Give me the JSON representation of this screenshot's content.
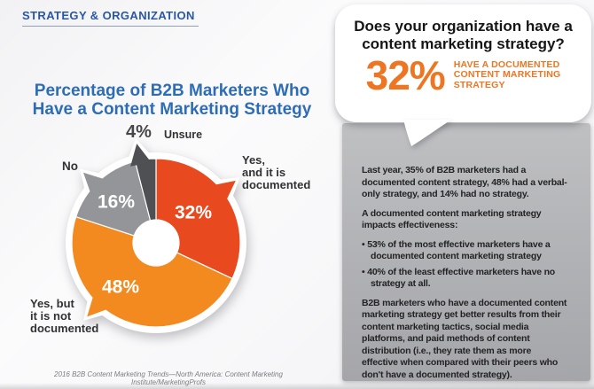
{
  "page": {
    "kicker": "STRATEGY & ORGANIZATION",
    "source": "2016 B2B Content Marketing Trends—North America: Content Marketing Institute/MarketingProfs"
  },
  "chart": {
    "title": "Percentage of B2B Marketers Who\nHave a Content Marketing Strategy",
    "labels": {
      "unsure_pct": "4%",
      "unsure": "Unsure",
      "no": "No",
      "yes_documented": "Yes,\nand it is\ndocumented",
      "yes_not_documented": "Yes, but\nit is not\ndocumented"
    }
  },
  "chart_data": {
    "type": "pie",
    "donut": true,
    "title": "Percentage of B2B Marketers Who Have a Content Marketing Strategy",
    "start_angle_deg": 0,
    "direction": "clockwise",
    "slices": [
      {
        "label": "Yes, and it is documented",
        "value": 32,
        "display": "32%",
        "color": "#e8491f",
        "tail_angle_deg": 52,
        "pct_label_pos": [
          182,
          106
        ]
      },
      {
        "label": "Yes, but it is not documented",
        "value": 48,
        "display": "48%",
        "color": "#f28a1f",
        "tail_angle_deg": 223,
        "pct_label_pos": [
          100,
          190
        ]
      },
      {
        "label": "No",
        "value": 16,
        "display": "16%",
        "color": "#939598",
        "tail_angle_deg": 314,
        "pct_label_pos": [
          95,
          94
        ]
      },
      {
        "label": "Unsure",
        "value": 4,
        "display": "4%",
        "color": "#4e5053",
        "tail_angle_deg": 349,
        "pct_label_pos": null
      }
    ]
  },
  "bubble": {
    "question": "Does your organization have a\ncontent marketing strategy?",
    "stat_value": "32%",
    "stat_caption": "HAVE A DOCUMENTED\nCONTENT MARKETING\nSTRATEGY"
  },
  "details": {
    "p1": "Last year, 35% of B2B marketers had a documented content strategy, 48% had a verbal-only strategy, and 14% had no strategy.",
    "p2": "A documented content marketing strategy impacts effectiveness:",
    "bullets": [
      "53% of the most effective marketers have a documented content marketing strategy",
      "40% of the least effective marketers have no strategy at all."
    ],
    "p3": "B2B marketers who have a documented content marketing strategy get better results from their content marketing tactics, social media platforms, and paid methods of content distribution (i.e., they rate them as more effective when compared with their peers who don't have a documented strategy)."
  },
  "colors": {
    "accent_orange": "#ee7623",
    "slice_red": "#e8491f",
    "slice_orange": "#f28a1f",
    "slice_gray": "#939598",
    "slice_dark": "#4e5053",
    "heading_blue": "#2e6db5",
    "kicker_blue": "#2a57a5",
    "panel_gray": "#b0b1b4"
  }
}
